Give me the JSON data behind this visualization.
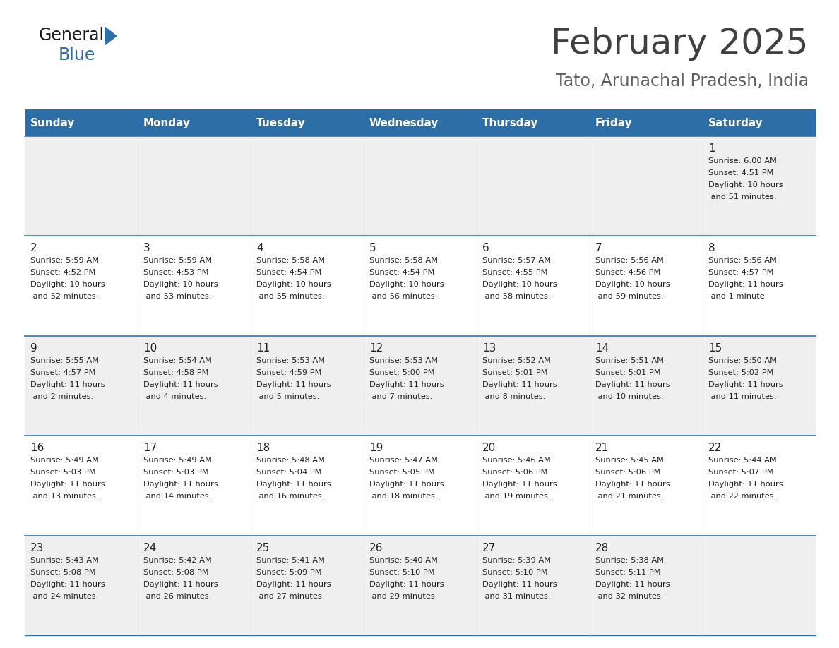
{
  "title": "February 2025",
  "subtitle": "Tato, Arunachal Pradesh, India",
  "header_bg": "#2E6EA6",
  "header_text_color": "#FFFFFF",
  "day_names": [
    "Sunday",
    "Monday",
    "Tuesday",
    "Wednesday",
    "Thursday",
    "Friday",
    "Saturday"
  ],
  "odd_row_bg": "#EFEFEF",
  "even_row_bg": "#FFFFFF",
  "cell_border_color": "#2E75B6",
  "title_color": "#404040",
  "subtitle_color": "#606060",
  "logo_general_color": "#1a1a1a",
  "logo_blue_color": "#2E6EA6",
  "logo_tri_color": "#2E6EA6",
  "days": [
    {
      "day": 1,
      "col": 6,
      "row": 0,
      "sunrise": "6:00 AM",
      "sunset": "4:51 PM",
      "daylight": "10 hours and 51 minutes."
    },
    {
      "day": 2,
      "col": 0,
      "row": 1,
      "sunrise": "5:59 AM",
      "sunset": "4:52 PM",
      "daylight": "10 hours and 52 minutes."
    },
    {
      "day": 3,
      "col": 1,
      "row": 1,
      "sunrise": "5:59 AM",
      "sunset": "4:53 PM",
      "daylight": "10 hours and 53 minutes."
    },
    {
      "day": 4,
      "col": 2,
      "row": 1,
      "sunrise": "5:58 AM",
      "sunset": "4:54 PM",
      "daylight": "10 hours and 55 minutes."
    },
    {
      "day": 5,
      "col": 3,
      "row": 1,
      "sunrise": "5:58 AM",
      "sunset": "4:54 PM",
      "daylight": "10 hours and 56 minutes."
    },
    {
      "day": 6,
      "col": 4,
      "row": 1,
      "sunrise": "5:57 AM",
      "sunset": "4:55 PM",
      "daylight": "10 hours and 58 minutes."
    },
    {
      "day": 7,
      "col": 5,
      "row": 1,
      "sunrise": "5:56 AM",
      "sunset": "4:56 PM",
      "daylight": "10 hours and 59 minutes."
    },
    {
      "day": 8,
      "col": 6,
      "row": 1,
      "sunrise": "5:56 AM",
      "sunset": "4:57 PM",
      "daylight": "11 hours and 1 minute."
    },
    {
      "day": 9,
      "col": 0,
      "row": 2,
      "sunrise": "5:55 AM",
      "sunset": "4:57 PM",
      "daylight": "11 hours and 2 minutes."
    },
    {
      "day": 10,
      "col": 1,
      "row": 2,
      "sunrise": "5:54 AM",
      "sunset": "4:58 PM",
      "daylight": "11 hours and 4 minutes."
    },
    {
      "day": 11,
      "col": 2,
      "row": 2,
      "sunrise": "5:53 AM",
      "sunset": "4:59 PM",
      "daylight": "11 hours and 5 minutes."
    },
    {
      "day": 12,
      "col": 3,
      "row": 2,
      "sunrise": "5:53 AM",
      "sunset": "5:00 PM",
      "daylight": "11 hours and 7 minutes."
    },
    {
      "day": 13,
      "col": 4,
      "row": 2,
      "sunrise": "5:52 AM",
      "sunset": "5:01 PM",
      "daylight": "11 hours and 8 minutes."
    },
    {
      "day": 14,
      "col": 5,
      "row": 2,
      "sunrise": "5:51 AM",
      "sunset": "5:01 PM",
      "daylight": "11 hours and 10 minutes."
    },
    {
      "day": 15,
      "col": 6,
      "row": 2,
      "sunrise": "5:50 AM",
      "sunset": "5:02 PM",
      "daylight": "11 hours and 11 minutes."
    },
    {
      "day": 16,
      "col": 0,
      "row": 3,
      "sunrise": "5:49 AM",
      "sunset": "5:03 PM",
      "daylight": "11 hours and 13 minutes."
    },
    {
      "day": 17,
      "col": 1,
      "row": 3,
      "sunrise": "5:49 AM",
      "sunset": "5:03 PM",
      "daylight": "11 hours and 14 minutes."
    },
    {
      "day": 18,
      "col": 2,
      "row": 3,
      "sunrise": "5:48 AM",
      "sunset": "5:04 PM",
      "daylight": "11 hours and 16 minutes."
    },
    {
      "day": 19,
      "col": 3,
      "row": 3,
      "sunrise": "5:47 AM",
      "sunset": "5:05 PM",
      "daylight": "11 hours and 18 minutes."
    },
    {
      "day": 20,
      "col": 4,
      "row": 3,
      "sunrise": "5:46 AM",
      "sunset": "5:06 PM",
      "daylight": "11 hours and 19 minutes."
    },
    {
      "day": 21,
      "col": 5,
      "row": 3,
      "sunrise": "5:45 AM",
      "sunset": "5:06 PM",
      "daylight": "11 hours and 21 minutes."
    },
    {
      "day": 22,
      "col": 6,
      "row": 3,
      "sunrise": "5:44 AM",
      "sunset": "5:07 PM",
      "daylight": "11 hours and 22 minutes."
    },
    {
      "day": 23,
      "col": 0,
      "row": 4,
      "sunrise": "5:43 AM",
      "sunset": "5:08 PM",
      "daylight": "11 hours and 24 minutes."
    },
    {
      "day": 24,
      "col": 1,
      "row": 4,
      "sunrise": "5:42 AM",
      "sunset": "5:08 PM",
      "daylight": "11 hours and 26 minutes."
    },
    {
      "day": 25,
      "col": 2,
      "row": 4,
      "sunrise": "5:41 AM",
      "sunset": "5:09 PM",
      "daylight": "11 hours and 27 minutes."
    },
    {
      "day": 26,
      "col": 3,
      "row": 4,
      "sunrise": "5:40 AM",
      "sunset": "5:10 PM",
      "daylight": "11 hours and 29 minutes."
    },
    {
      "day": 27,
      "col": 4,
      "row": 4,
      "sunrise": "5:39 AM",
      "sunset": "5:10 PM",
      "daylight": "11 hours and 31 minutes."
    },
    {
      "day": 28,
      "col": 5,
      "row": 4,
      "sunrise": "5:38 AM",
      "sunset": "5:11 PM",
      "daylight": "11 hours and 32 minutes."
    }
  ]
}
